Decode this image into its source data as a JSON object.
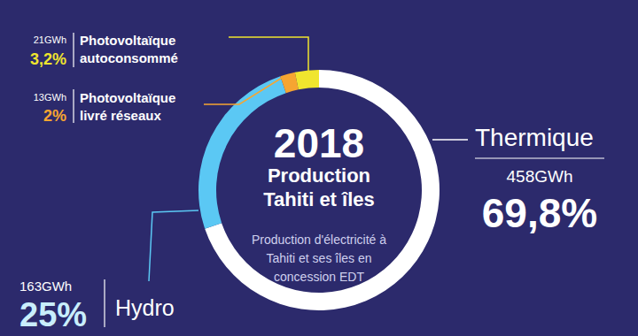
{
  "chart_data": {
    "type": "pie",
    "title": "2018",
    "subtitle": [
      "Production",
      "Tahiti et îles"
    ],
    "note": [
      "Production d'électricité à",
      "Tahiti et ses îles en",
      "concession EDT"
    ],
    "categories": [
      "Thermique",
      "Hydro",
      "Photovoltaïque\nlivré réseaux",
      "Photovoltaïque\nautoconsommé"
    ],
    "values": [
      69.8,
      25,
      2,
      3.2
    ],
    "value_labels": [
      "69,8%",
      "25%",
      "2%",
      "3,2%"
    ],
    "energy_labels": [
      "458GWh",
      "163GWh",
      "13GWh",
      "21GWh"
    ],
    "colors": [
      "#ffffff",
      "#5bc8f4",
      "#f6a531",
      "#f0e52e"
    ],
    "data_labels": true
  }
}
